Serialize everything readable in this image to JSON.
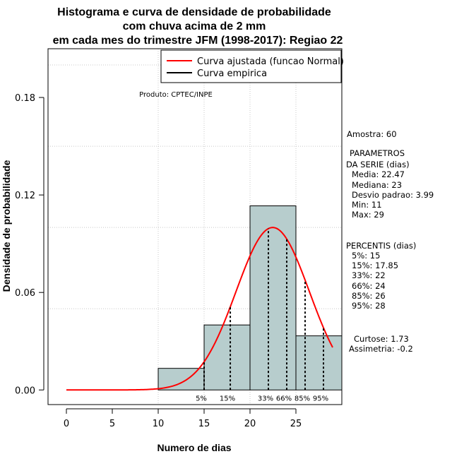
{
  "chart_data": {
    "type": "bar",
    "title_lines": [
      "Histograma e curva de densidade de probabilidade",
      "com chuva acima de 2 mm",
      "em cada mes do trimestre JFM (1998-2017): Regiao 22"
    ],
    "xlabel": "Numero de dias",
    "ylabel": "Densidade de probabilidade",
    "xlim": [
      -2,
      30
    ],
    "ylim": [
      -0.009,
      0.21
    ],
    "x_ticks": [
      0,
      5,
      10,
      15,
      20,
      25
    ],
    "y_ticks": [
      0.0,
      0.06,
      0.12,
      0.18
    ],
    "y_tick_labels": [
      "0.00",
      "0.06",
      "0.12",
      "0.18"
    ],
    "grid": true,
    "grid_x": [
      10,
      15,
      20,
      25,
      30
    ],
    "grid_y": [
      0.05,
      0.1,
      0.15,
      0.2
    ],
    "histogram": {
      "bins": [
        {
          "x0": 10,
          "x1": 15,
          "density": 0.0133
        },
        {
          "x0": 15,
          "x1": 20,
          "density": 0.04
        },
        {
          "x0": 20,
          "x1": 25,
          "density": 0.1133
        },
        {
          "x0": 25,
          "x1": 30,
          "density": 0.0333
        }
      ],
      "fill": "#b7cdcd"
    },
    "normal_curve": {
      "mean": 22.47,
      "sd": 3.99,
      "x_range": [
        0,
        29
      ],
      "color": "#ff0000"
    },
    "percentile_lines": [
      {
        "label": "5%",
        "x": 15
      },
      {
        "label": "15%",
        "x": 17.85
      },
      {
        "label": "33%",
        "x": 22
      },
      {
        "label": "66%",
        "x": 24
      },
      {
        "label": "85%",
        "x": 26
      },
      {
        "label": "95%",
        "x": 28
      }
    ],
    "legend": {
      "placement": "top-right",
      "entries": [
        {
          "label": "Curva ajustada (funcao Normal)",
          "color": "#ff0000"
        },
        {
          "label": "Curva empirica",
          "color": "#000000"
        }
      ]
    },
    "product_note": "Produto: CPTEC/INPE",
    "side_panel": {
      "amostra": "Amostra: 60",
      "param_title_1": "PARAMETROS",
      "param_title_2": "DA SERIE (dias)",
      "media": "Media: 22.47",
      "mediana": "Mediana: 23",
      "desvio": "Desvio padrao: 3.99",
      "min": "Min: 11",
      "max": "Max: 29",
      "perc_title": "PERCENTIS (dias)",
      "p5": "5%: 15",
      "p15": "15%: 17.85",
      "p33": "33%: 22",
      "p66": "66%: 24",
      "p85": "85%: 26",
      "p95": "95%: 28",
      "curtose": "Curtose: 1.73",
      "assimetria": "Assimetria: -0.2"
    }
  }
}
